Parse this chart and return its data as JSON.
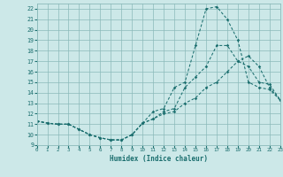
{
  "xlabel": "Humidex (Indice chaleur)",
  "background_color": "#cce8e8",
  "grid_color": "#8bbaba",
  "line_color": "#1a6e6e",
  "xlim": [
    0,
    23
  ],
  "ylim": [
    9,
    22.5
  ],
  "xticks": [
    0,
    1,
    2,
    3,
    4,
    5,
    6,
    7,
    8,
    9,
    10,
    11,
    12,
    13,
    14,
    15,
    16,
    17,
    18,
    19,
    20,
    21,
    22,
    23
  ],
  "yticks": [
    9,
    10,
    11,
    12,
    13,
    14,
    15,
    16,
    17,
    18,
    19,
    20,
    21,
    22
  ],
  "line1_y": [
    11.3,
    11.1,
    11.0,
    11.0,
    10.5,
    10.0,
    9.7,
    9.5,
    9.5,
    10.0,
    11.1,
    12.2,
    12.5,
    14.5,
    15.0,
    18.5,
    22.0,
    22.2,
    21.0,
    19.0,
    15.0,
    14.5,
    14.3,
    13.3
  ],
  "line2_y": [
    11.3,
    11.1,
    11.0,
    11.0,
    10.5,
    10.0,
    9.7,
    9.5,
    9.5,
    10.0,
    11.1,
    11.5,
    12.2,
    12.5,
    14.5,
    15.5,
    16.5,
    18.5,
    18.5,
    17.0,
    16.5,
    15.0,
    14.8,
    13.3
  ],
  "line3_y": [
    11.3,
    11.1,
    11.0,
    11.0,
    10.5,
    10.0,
    9.7,
    9.5,
    9.5,
    10.0,
    11.1,
    11.5,
    12.0,
    12.2,
    13.0,
    13.5,
    14.5,
    15.0,
    16.0,
    17.0,
    17.5,
    16.5,
    14.5,
    13.3
  ]
}
